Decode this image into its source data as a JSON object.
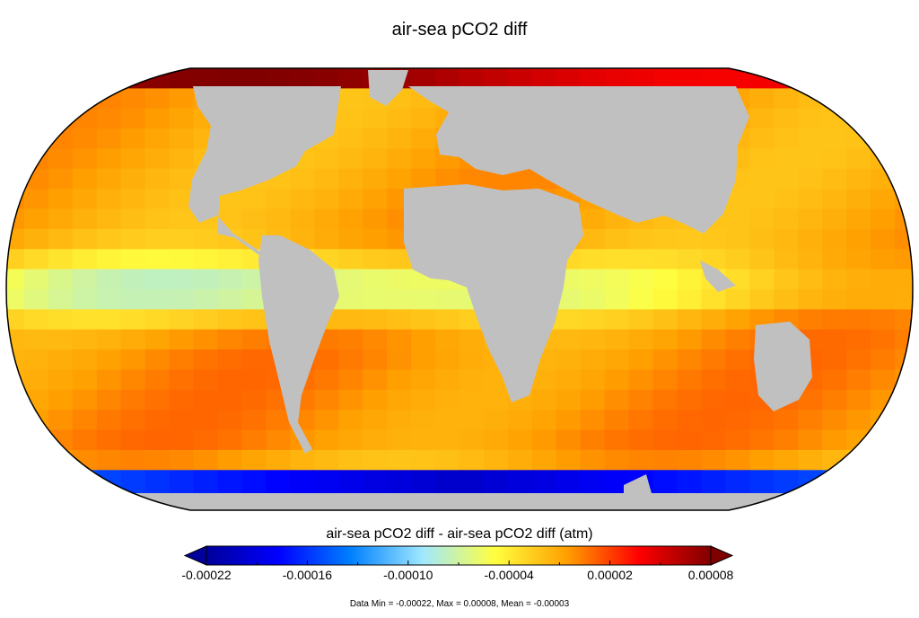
{
  "title": "air-sea pCO2 diff",
  "colorbar": {
    "title": "air-sea pCO2 diff - air-sea pCO2 diff (atm)",
    "min": -0.00022,
    "max": 8e-05,
    "ticks": [
      -0.00022,
      -0.00016,
      -0.0001,
      -4e-05,
      2e-05,
      8e-05
    ],
    "tick_labels": [
      "-0.00022",
      "-0.00016",
      "-0.00010",
      "-0.00004",
      "0.00002",
      "0.00008"
    ],
    "extend": "both",
    "colormap": [
      "#00009a",
      "#0000ff",
      "#0080ff",
      "#a0e8ff",
      "#ffff40",
      "#ffa000",
      "#ff0000",
      "#800000"
    ]
  },
  "stats_text": "Data Min = -0.00022, Max = 0.00008, Mean = -0.00003",
  "chart_data": {
    "type": "heatmap",
    "projection": "Robinson",
    "title": "air-sea pCO2 diff",
    "units": "atm",
    "land_color": "#c0c0c0",
    "value_range": [
      -0.00022,
      8e-05
    ],
    "data_min": -0.00022,
    "data_max": 8e-05,
    "data_mean": -3e-05
  }
}
